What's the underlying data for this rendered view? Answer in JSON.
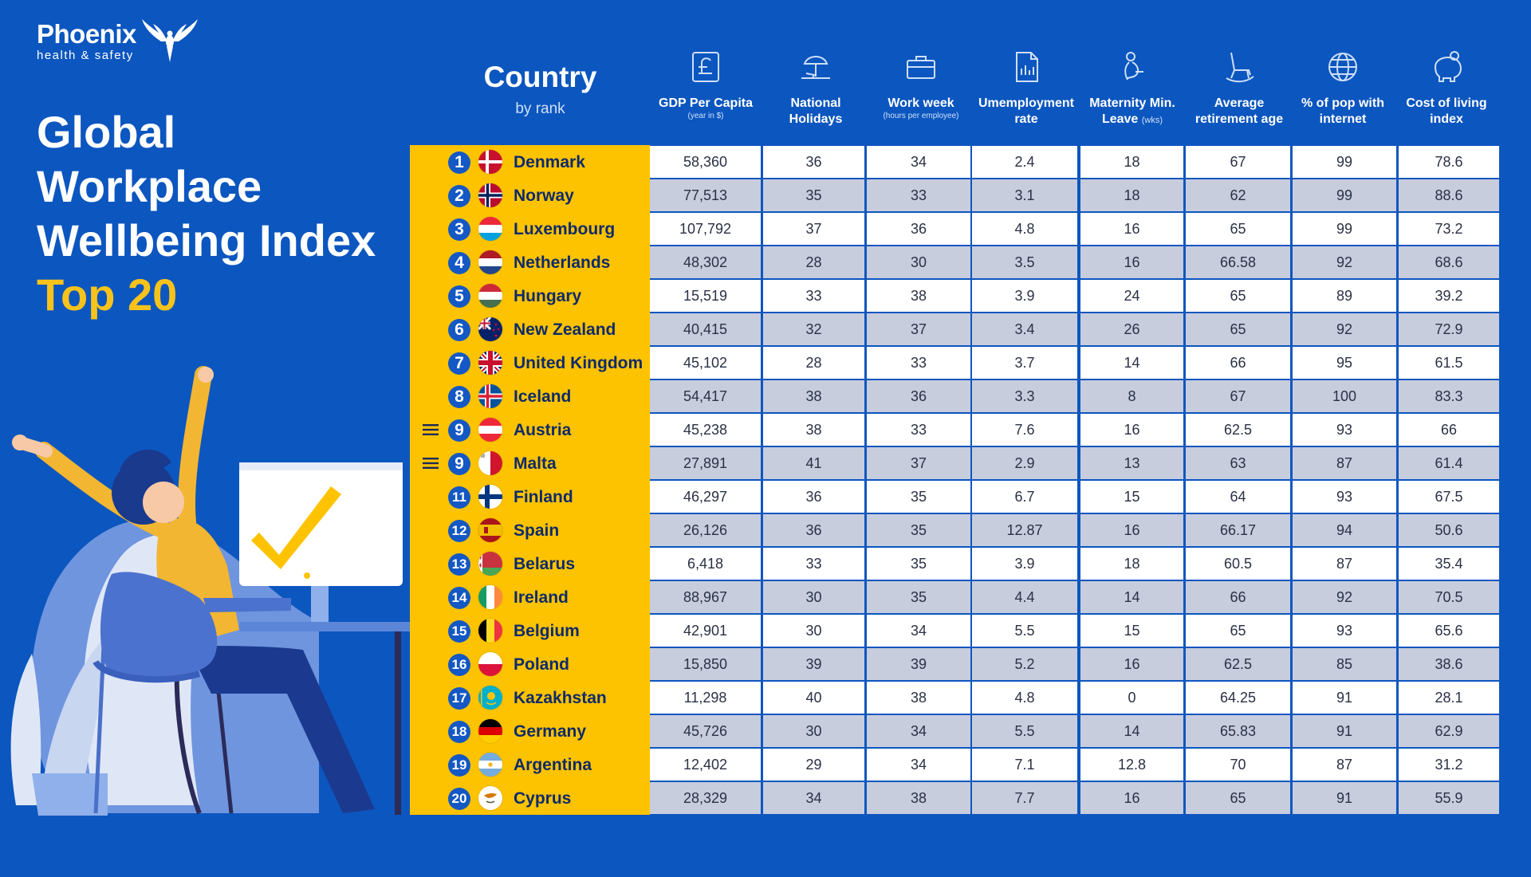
{
  "brand": {
    "name": "Phoenix",
    "tagline": "health & safety"
  },
  "title": {
    "lines": [
      "Global",
      "Workplace",
      "Wellbeing Index"
    ],
    "accent": "Top 20"
  },
  "chart_data": {
    "type": "table",
    "country_header": {
      "title": "Country",
      "subtitle": "by rank"
    },
    "columns": [
      {
        "label": "GDP Per Capita",
        "sub": "(year in $)",
        "icon": "pound-icon"
      },
      {
        "label": "National Holidays",
        "sub": "",
        "icon": "beach-umbrella-icon"
      },
      {
        "label": "Work week",
        "sub": "(hours per employee)",
        "icon": "briefcase-icon"
      },
      {
        "label": "Umemployment rate",
        "sub": "",
        "icon": "document-chart-icon"
      },
      {
        "label": "Maternity Min. Leave",
        "sub": "(wks)",
        "icon": "maternity-icon"
      },
      {
        "label": "Average retirement age",
        "sub": "",
        "icon": "rocking-chair-icon"
      },
      {
        "label": "% of pop with internet",
        "sub": "",
        "icon": "globe-icon"
      },
      {
        "label": "Cost of living index",
        "sub": "",
        "icon": "piggy-bank-icon"
      }
    ],
    "rows": [
      {
        "rank": "1",
        "tie": false,
        "country": "Denmark",
        "flag": "denmark-flag-icon",
        "values": [
          "58,360",
          "36",
          "34",
          "2.4",
          "18",
          "67",
          "99",
          "78.6"
        ]
      },
      {
        "rank": "2",
        "tie": false,
        "country": "Norway",
        "flag": "norway-flag-icon",
        "values": [
          "77,513",
          "35",
          "33",
          "3.1",
          "18",
          "62",
          "99",
          "88.6"
        ]
      },
      {
        "rank": "3",
        "tie": false,
        "country": "Luxembourg",
        "flag": "luxembourg-flag-icon",
        "values": [
          "107,792",
          "37",
          "36",
          "4.8",
          "16",
          "65",
          "99",
          "73.2"
        ]
      },
      {
        "rank": "4",
        "tie": false,
        "country": "Netherlands",
        "flag": "netherlands-flag-icon",
        "values": [
          "48,302",
          "28",
          "30",
          "3.5",
          "16",
          "66.58",
          "92",
          "68.6"
        ]
      },
      {
        "rank": "5",
        "tie": false,
        "country": "Hungary",
        "flag": "hungary-flag-icon",
        "values": [
          "15,519",
          "33",
          "38",
          "3.9",
          "24",
          "65",
          "89",
          "39.2"
        ]
      },
      {
        "rank": "6",
        "tie": false,
        "country": "New Zealand",
        "flag": "new-zealand-flag-icon",
        "values": [
          "40,415",
          "32",
          "37",
          "3.4",
          "26",
          "65",
          "92",
          "72.9"
        ]
      },
      {
        "rank": "7",
        "tie": false,
        "country": "United Kingdom",
        "flag": "united-kingdom-flag-icon",
        "values": [
          "45,102",
          "28",
          "33",
          "3.7",
          "14",
          "66",
          "95",
          "61.5"
        ]
      },
      {
        "rank": "8",
        "tie": false,
        "country": "Iceland",
        "flag": "iceland-flag-icon",
        "values": [
          "54,417",
          "38",
          "36",
          "3.3",
          "8",
          "67",
          "100",
          "83.3"
        ]
      },
      {
        "rank": "9",
        "tie": true,
        "country": "Austria",
        "flag": "austria-flag-icon",
        "values": [
          "45,238",
          "38",
          "33",
          "7.6",
          "16",
          "62.5",
          "93",
          "66"
        ]
      },
      {
        "rank": "9",
        "tie": true,
        "country": "Malta",
        "flag": "malta-flag-icon",
        "values": [
          "27,891",
          "41",
          "37",
          "2.9",
          "13",
          "63",
          "87",
          "61.4"
        ]
      },
      {
        "rank": "11",
        "tie": false,
        "country": "Finland",
        "flag": "finland-flag-icon",
        "values": [
          "46,297",
          "36",
          "35",
          "6.7",
          "15",
          "64",
          "93",
          "67.5"
        ]
      },
      {
        "rank": "12",
        "tie": false,
        "country": "Spain",
        "flag": "spain-flag-icon",
        "values": [
          "26,126",
          "36",
          "35",
          "12.87",
          "16",
          "66.17",
          "94",
          "50.6"
        ]
      },
      {
        "rank": "13",
        "tie": false,
        "country": "Belarus",
        "flag": "belarus-flag-icon",
        "values": [
          "6,418",
          "33",
          "35",
          "3.9",
          "18",
          "60.5",
          "87",
          "35.4"
        ]
      },
      {
        "rank": "14",
        "tie": false,
        "country": "Ireland",
        "flag": "ireland-flag-icon",
        "values": [
          "88,967",
          "30",
          "35",
          "4.4",
          "14",
          "66",
          "92",
          "70.5"
        ]
      },
      {
        "rank": "15",
        "tie": false,
        "country": "Belgium",
        "flag": "belgium-flag-icon",
        "values": [
          "42,901",
          "30",
          "34",
          "5.5",
          "15",
          "65",
          "93",
          "65.6"
        ]
      },
      {
        "rank": "16",
        "tie": false,
        "country": "Poland",
        "flag": "poland-flag-icon",
        "values": [
          "15,850",
          "39",
          "39",
          "5.2",
          "16",
          "62.5",
          "85",
          "38.6"
        ]
      },
      {
        "rank": "17",
        "tie": false,
        "country": "Kazakhstan",
        "flag": "kazakhstan-flag-icon",
        "values": [
          "11,298",
          "40",
          "38",
          "4.8",
          "0",
          "64.25",
          "91",
          "28.1"
        ]
      },
      {
        "rank": "18",
        "tie": false,
        "country": "Germany",
        "flag": "germany-flag-icon",
        "values": [
          "45,726",
          "30",
          "34",
          "5.5",
          "14",
          "65.83",
          "91",
          "62.9"
        ]
      },
      {
        "rank": "19",
        "tie": false,
        "country": "Argentina",
        "flag": "argentina-flag-icon",
        "values": [
          "12,402",
          "29",
          "34",
          "7.1",
          "12.8",
          "70",
          "87",
          "31.2"
        ]
      },
      {
        "rank": "20",
        "tie": false,
        "country": "Cyprus",
        "flag": "cyprus-flag-icon",
        "values": [
          "28,329",
          "34",
          "38",
          "7.7",
          "16",
          "65",
          "91",
          "55.9"
        ]
      }
    ]
  },
  "colors": {
    "background": "#0c56bf",
    "accent_yellow": "#fdc300",
    "title_accent": "#f7c31b",
    "rank_badge": "#1358c4",
    "row_light": "#ffffff",
    "row_shaded": "#c7cddd"
  }
}
